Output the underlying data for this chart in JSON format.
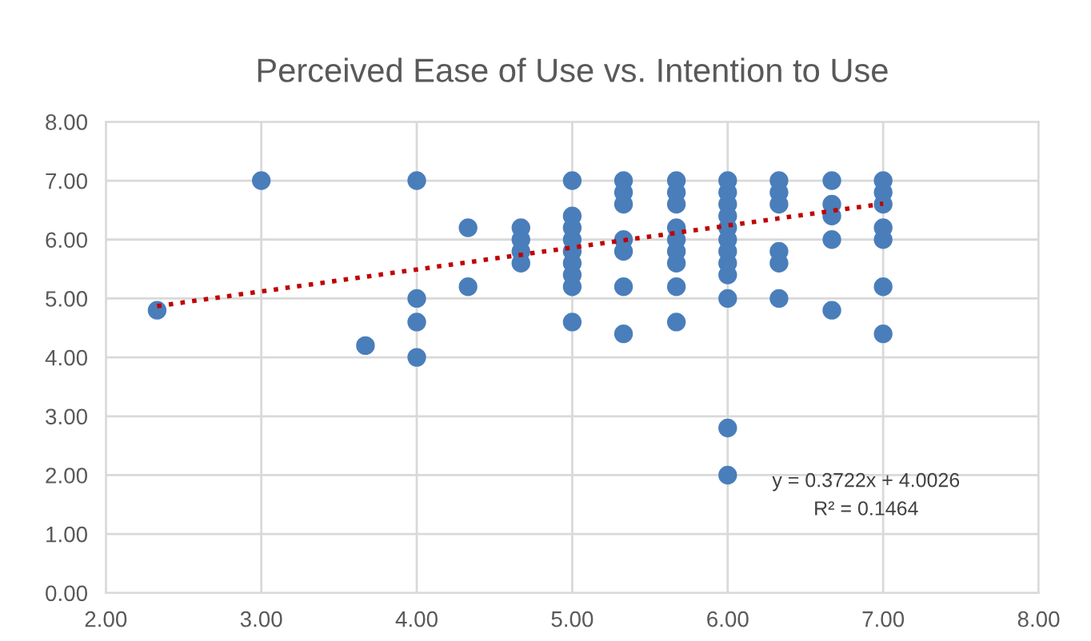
{
  "chart_data": {
    "type": "scatter",
    "title": "Perceived Ease of Use vs. Intention to Use",
    "xlim": [
      2,
      8
    ],
    "ylim": [
      0,
      8
    ],
    "xticks": [
      {
        "value": 2,
        "label": "2.00"
      },
      {
        "value": 3,
        "label": "3.00"
      },
      {
        "value": 4,
        "label": "4.00"
      },
      {
        "value": 5,
        "label": "5.00"
      },
      {
        "value": 6,
        "label": "6.00"
      },
      {
        "value": 7,
        "label": "7.00"
      },
      {
        "value": 8,
        "label": "8.00"
      }
    ],
    "yticks": [
      {
        "value": 0,
        "label": "0.00"
      },
      {
        "value": 1,
        "label": "1.00"
      },
      {
        "value": 2,
        "label": "2.00"
      },
      {
        "value": 3,
        "label": "3.00"
      },
      {
        "value": 4,
        "label": "4.00"
      },
      {
        "value": 5,
        "label": "5.00"
      },
      {
        "value": 6,
        "label": "6.00"
      },
      {
        "value": 7,
        "label": "7.00"
      },
      {
        "value": 8,
        "label": "8.00"
      }
    ],
    "grid": true,
    "legend": false,
    "marker": "circle",
    "series": [
      {
        "color": "#4a7ebb",
        "x": [
          2.33,
          3,
          3.67,
          4,
          4,
          4,
          4,
          4.33,
          4.33,
          4.67,
          4.67,
          4.67,
          4.67,
          5,
          5,
          5,
          5,
          5,
          5,
          5,
          5,
          5,
          5.33,
          5.33,
          5.33,
          5.33,
          5.33,
          5.33,
          5.33,
          5.67,
          5.67,
          5.67,
          5.67,
          5.67,
          5.67,
          5.67,
          5.67,
          5.67,
          6,
          6,
          6,
          6,
          6,
          6,
          6,
          6,
          6,
          6,
          6,
          6,
          6.33,
          6.33,
          6.33,
          6.33,
          6.33,
          6.33,
          6.67,
          6.67,
          6.67,
          6.67,
          6.67,
          7,
          7,
          7,
          7,
          7,
          7,
          7
        ],
        "values": [
          4.8,
          7.0,
          4.2,
          7.0,
          5.0,
          4.6,
          4.0,
          6.2,
          5.2,
          6.2,
          6.0,
          5.8,
          5.6,
          7.0,
          6.4,
          6.2,
          6.0,
          5.8,
          5.6,
          5.4,
          5.2,
          4.6,
          7.0,
          6.8,
          6.6,
          6.0,
          5.8,
          5.2,
          4.4,
          7.0,
          6.8,
          6.6,
          6.2,
          6.0,
          5.8,
          5.6,
          5.2,
          4.6,
          7.0,
          6.8,
          6.6,
          6.4,
          6.2,
          6.0,
          5.8,
          5.6,
          5.4,
          5.0,
          2.8,
          2.0,
          7.0,
          6.8,
          6.6,
          5.8,
          5.6,
          5.0,
          7.0,
          6.6,
          6.4,
          6.0,
          4.8,
          7.0,
          6.8,
          6.6,
          6.2,
          6.0,
          5.2,
          4.4
        ]
      },
      {
        "type": "line",
        "color": "#c00000",
        "line_style": "dotted",
        "marker": "none",
        "x": [
          2.33,
          7
        ],
        "values": [
          4.87,
          6.61
        ]
      }
    ],
    "annotations": [
      "y = 0.3722x + 4.0026",
      "R² = 0.1464"
    ]
  }
}
